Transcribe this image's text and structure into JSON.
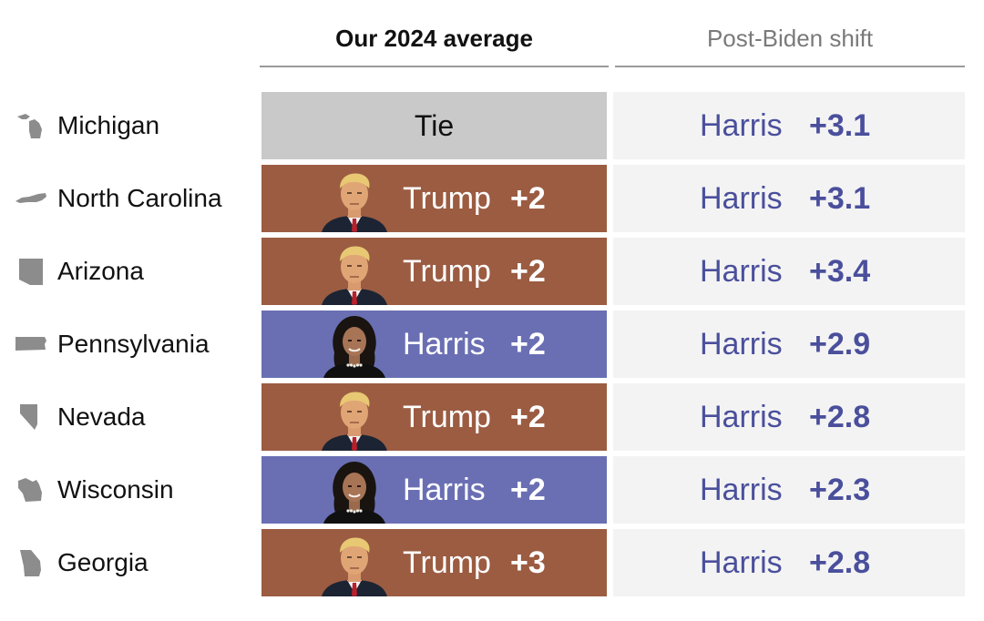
{
  "headers": {
    "average": "Our 2024 average",
    "shift": "Post-Biden shift"
  },
  "colors": {
    "trump": "#9b5c42",
    "harris": "#6a6fb4",
    "tie": "#c9c9c9",
    "shift_background": "#f3f3f3",
    "shift_text": "#4a4f9c",
    "state_icon": "#8c8c8c"
  },
  "chart_data": {
    "type": "table",
    "columns": [
      "Our 2024 average",
      "Post-Biden shift"
    ],
    "rows": [
      {
        "state": "Michigan",
        "icon": "michigan-shape-icon",
        "leader": "Tie",
        "margin": "",
        "party": "tie",
        "shift_leader": "Harris",
        "shift_margin": "+3.1"
      },
      {
        "state": "North Carolina",
        "icon": "north-carolina-shape-icon",
        "leader": "Trump",
        "margin": "+2",
        "party": "rep",
        "shift_leader": "Harris",
        "shift_margin": "+3.1"
      },
      {
        "state": "Arizona",
        "icon": "arizona-shape-icon",
        "leader": "Trump",
        "margin": "+2",
        "party": "rep",
        "shift_leader": "Harris",
        "shift_margin": "+3.4"
      },
      {
        "state": "Pennsylvania",
        "icon": "pennsylvania-shape-icon",
        "leader": "Harris",
        "margin": "+2",
        "party": "dem",
        "shift_leader": "Harris",
        "shift_margin": "+2.9"
      },
      {
        "state": "Nevada",
        "icon": "nevada-shape-icon",
        "leader": "Trump",
        "margin": "+2",
        "party": "rep",
        "shift_leader": "Harris",
        "shift_margin": "+2.8"
      },
      {
        "state": "Wisconsin",
        "icon": "wisconsin-shape-icon",
        "leader": "Harris",
        "margin": "+2",
        "party": "dem",
        "shift_leader": "Harris",
        "shift_margin": "+2.3"
      },
      {
        "state": "Georgia",
        "icon": "georgia-shape-icon",
        "leader": "Trump",
        "margin": "+3",
        "party": "rep",
        "shift_leader": "Harris",
        "shift_margin": "+2.8"
      }
    ]
  }
}
